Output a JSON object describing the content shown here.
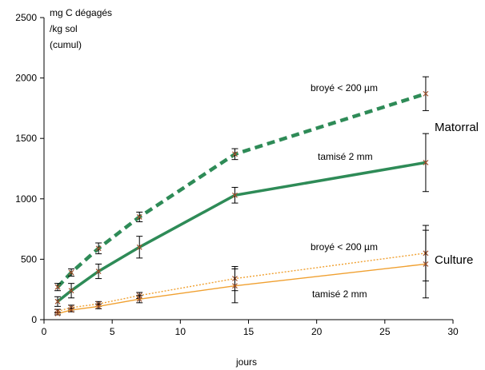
{
  "chart_data": {
    "type": "line",
    "ylabel_lines": [
      "mg C dégagés",
      "/kg sol",
      "(cumul)"
    ],
    "xlabel": "jours",
    "xlim": [
      0,
      30
    ],
    "ylim": [
      0,
      2500
    ],
    "xticks": [
      0,
      5,
      10,
      15,
      20,
      25,
      30
    ],
    "yticks": [
      0,
      500,
      1000,
      1500,
      2000,
      2500
    ],
    "grid": false,
    "series": [
      {
        "name": "broyé  < 200 µm",
        "group": "Matorral",
        "color": "#2e8b57",
        "style": "dashed",
        "x": [
          1,
          2,
          4,
          7,
          14,
          28
        ],
        "y": [
          270,
          390,
          590,
          850,
          1370,
          1870
        ],
        "err": [
          30,
          30,
          45,
          40,
          45,
          140
        ]
      },
      {
        "name": "tamisé 2 mm",
        "group": "Matorral",
        "color": "#2e8b57",
        "style": "solid",
        "x": [
          1,
          2,
          4,
          7,
          14,
          28
        ],
        "y": [
          150,
          240,
          400,
          600,
          1030,
          1300
        ],
        "err": [
          40,
          60,
          60,
          90,
          65,
          240
        ]
      },
      {
        "name": "broyé  < 200 µm",
        "group": "Culture",
        "color": "#f0a030",
        "style": "dotted",
        "x": [
          1,
          2,
          4,
          7,
          14,
          28
        ],
        "y": [
          70,
          100,
          130,
          200,
          340,
          550
        ],
        "err": [
          15,
          20,
          20,
          25,
          100,
          230
        ]
      },
      {
        "name": "tamisé 2 mm",
        "group": "Culture",
        "color": "#f0a030",
        "style": "solid",
        "x": [
          1,
          2,
          4,
          7,
          14,
          28
        ],
        "y": [
          50,
          80,
          110,
          170,
          280,
          460
        ],
        "err": [
          10,
          15,
          20,
          30,
          140,
          280
        ]
      }
    ],
    "annotations": {
      "matorral_broye": "broyé  < 200 µm",
      "matorral_tamise": "tamisé 2 mm",
      "culture_broye": "broyé  < 200 µm",
      "culture_tamise": "tamisé 2 mm",
      "group_matorral": "Matorral",
      "group_culture": "Culture"
    },
    "marker_color": "#a0522d"
  }
}
